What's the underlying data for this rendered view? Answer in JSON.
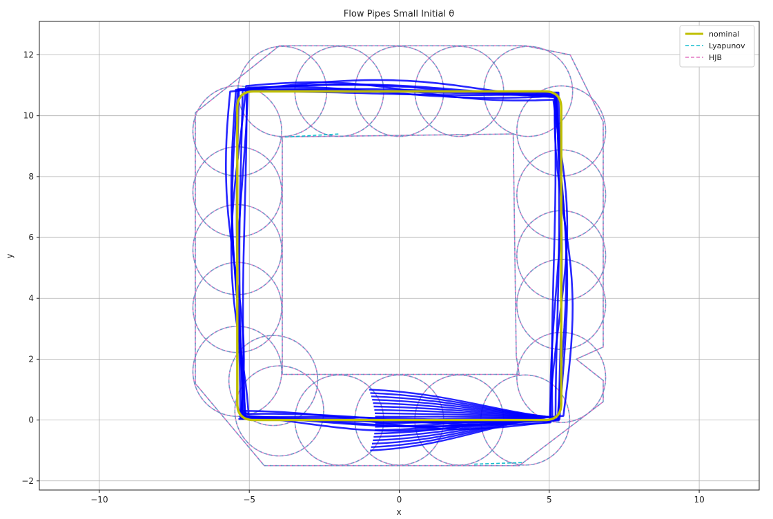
{
  "chart_data": {
    "type": "line",
    "title": "Flow Pipes Small Initial θ",
    "xlabel": "x",
    "ylabel": "y",
    "xlim": [
      -12,
      12
    ],
    "ylim": [
      -2.3,
      13.1
    ],
    "xticks": [
      -10,
      -5,
      0,
      5,
      10
    ],
    "yticks": [
      -2,
      0,
      2,
      4,
      6,
      8,
      10,
      12
    ],
    "xtick_labels": [
      "−10",
      "−5",
      "0",
      "5",
      "10"
    ],
    "ytick_labels": [
      "−2",
      "0",
      "2",
      "4",
      "6",
      "8",
      "10",
      "12"
    ],
    "grid": true,
    "legend_position": "top-right",
    "legend": [
      {
        "label": "nominal",
        "color": "#bfbf00",
        "style": "solid"
      },
      {
        "label": "Lyapunov",
        "color": "#17becf",
        "style": "dashed"
      },
      {
        "label": "HJB",
        "color": "#e377c2",
        "style": "dashed"
      }
    ],
    "colors": {
      "nominal": "#bfbf00",
      "lyapunov": "#17becf",
      "hjb": "#e377c2",
      "trajectories": "#0000ff"
    },
    "nominal_path": {
      "description_points": [
        [
          0,
          0
        ],
        [
          5,
          0
        ],
        [
          5.4,
          0.4
        ],
        [
          5.4,
          10.4
        ],
        [
          5,
          10.8
        ],
        [
          -5,
          10.8
        ],
        [
          -5.4,
          10.4
        ],
        [
          -5.4,
          0.4
        ],
        [
          -5,
          0
        ],
        [
          0,
          0
        ]
      ]
    },
    "tube_circles": {
      "radius": 1.48,
      "centers": [
        [
          -4.2,
          1.3
        ],
        [
          -2.0,
          0.0
        ],
        [
          0.0,
          0.0
        ],
        [
          2.0,
          0.0
        ],
        [
          4.2,
          0.0
        ],
        [
          5.4,
          1.4
        ],
        [
          5.4,
          3.8
        ],
        [
          5.4,
          5.4
        ],
        [
          5.4,
          7.4
        ],
        [
          5.4,
          9.5
        ],
        [
          4.3,
          10.8
        ],
        [
          2.0,
          10.8
        ],
        [
          0.0,
          10.8
        ],
        [
          -2.0,
          10.8
        ],
        [
          -3.9,
          10.8
        ],
        [
          -5.4,
          9.5
        ],
        [
          -5.4,
          7.5
        ],
        [
          -5.4,
          5.6
        ],
        [
          -5.4,
          3.7
        ],
        [
          -5.4,
          1.6
        ],
        [
          -4.0,
          0.3
        ]
      ]
    },
    "hjb_envelope": [
      [
        -4.5,
        -1.5
      ],
      [
        4.0,
        -1.5
      ],
      [
        6.8,
        0.6
      ],
      [
        6.8,
        1.3
      ],
      [
        5.9,
        2.0
      ],
      [
        6.8,
        2.4
      ],
      [
        6.8,
        9.0
      ],
      [
        6.8,
        9.8
      ],
      [
        5.7,
        12.0
      ],
      [
        4.2,
        12.3
      ],
      [
        -4.0,
        12.3
      ],
      [
        -6.8,
        10.1
      ],
      [
        -6.8,
        9.2
      ],
      [
        -6.8,
        2.1
      ],
      [
        -6.8,
        1.2
      ],
      [
        -4.5,
        -1.5
      ]
    ],
    "hjb_inner": [
      [
        -4.0,
        9.3
      ],
      [
        3.8,
        9.4
      ],
      [
        3.9,
        2.1
      ],
      [
        4.0,
        1.5
      ],
      [
        -3.9,
        1.5
      ],
      [
        -3.9,
        9.3
      ]
    ],
    "lyapunov_segments": [
      [
        [
          -3.8,
          9.3
        ],
        [
          -2.0,
          9.4
        ]
      ],
      [
        [
          2.5,
          -1.45
        ],
        [
          4.1,
          -1.4
        ]
      ]
    ],
    "trajectory_bundle": {
      "start_upper": [
        -1.0,
        1.0
      ],
      "start_lower": [
        -1.0,
        -1.0
      ],
      "merge_point": [
        5.0,
        0.1
      ]
    }
  }
}
